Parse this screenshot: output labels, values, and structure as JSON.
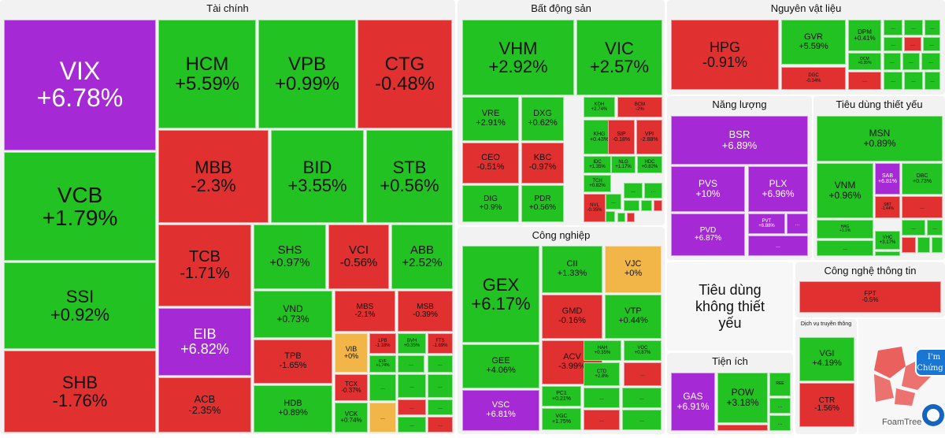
{
  "chart_data": {
    "type": "treemap",
    "sectors": [
      {
        "name": "Tài chính",
        "tiles": [
          {
            "s": "VIX",
            "c": "+6.78%"
          },
          {
            "s": "HCM",
            "c": "+5.59%"
          },
          {
            "s": "VPB",
            "c": "+0.99%"
          },
          {
            "s": "CTG",
            "c": "-0.48%"
          },
          {
            "s": "VCB",
            "c": "+1.79%"
          },
          {
            "s": "MBB",
            "c": "-2.3%"
          },
          {
            "s": "BID",
            "c": "+3.55%"
          },
          {
            "s": "STB",
            "c": "+0.56%"
          },
          {
            "s": "SSI",
            "c": "+0.92%"
          },
          {
            "s": "TCB",
            "c": "-1.71%"
          },
          {
            "s": "SHS",
            "c": "+0.97%"
          },
          {
            "s": "VCI",
            "c": "-0.56%"
          },
          {
            "s": "ABB",
            "c": "+2.52%"
          },
          {
            "s": "EIB",
            "c": "+6.82%"
          },
          {
            "s": "VND",
            "c": "+0.73%"
          },
          {
            "s": "MBS",
            "c": "-2.1%"
          },
          {
            "s": "MSB",
            "c": "-0.39%"
          },
          {
            "s": "SHB",
            "c": "-1.76%"
          },
          {
            "s": "TPB",
            "c": "-1.65%"
          },
          {
            "s": "VIB",
            "c": "+0%"
          },
          {
            "s": "LPB",
            "c": "-1.18%"
          },
          {
            "s": "BVH",
            "c": "+0.35%"
          },
          {
            "s": "FTS",
            "c": "-1.69%"
          },
          {
            "s": "EVF",
            "c": "+1.74%"
          },
          {
            "s": "TCX",
            "c": "-0.37%"
          },
          {
            "s": "ACB",
            "c": "-2.35%"
          },
          {
            "s": "HDB",
            "c": "+0.89%"
          },
          {
            "s": "VCK",
            "c": "+0.74%"
          }
        ]
      },
      {
        "name": "Bất động sản",
        "tiles": [
          {
            "s": "VHM",
            "c": "+2.92%"
          },
          {
            "s": "VIC",
            "c": "+2.57%"
          },
          {
            "s": "VRE",
            "c": "+2.91%"
          },
          {
            "s": "DXG",
            "c": "+0.62%"
          },
          {
            "s": "KDH",
            "c": "+2.74%"
          },
          {
            "s": "BCM",
            "c": "-2%"
          },
          {
            "s": "KHG",
            "c": "+0.43%"
          },
          {
            "s": "SIP",
            "c": "-0.18%"
          },
          {
            "s": "VPI",
            "c": "-2.88%"
          },
          {
            "s": "CEO",
            "c": "-0.51%"
          },
          {
            "s": "KBC",
            "c": "-0.97%"
          },
          {
            "s": "IDC",
            "c": "+1.35%"
          },
          {
            "s": "NLG",
            "c": "+1.17%"
          },
          {
            "s": "HDC",
            "c": "+0.82%"
          },
          {
            "s": "TCH",
            "c": "+0.82%"
          },
          {
            "s": "DIG",
            "c": "+0.9%"
          },
          {
            "s": "PDR",
            "c": "+0.56%"
          },
          {
            "s": "NVL",
            "c": "-0.35%"
          }
        ]
      },
      {
        "name": "Công nghiệp",
        "tiles": [
          {
            "s": "GEX",
            "c": "+6.17%"
          },
          {
            "s": "CII",
            "c": "+1.33%"
          },
          {
            "s": "VJC",
            "c": "+0%"
          },
          {
            "s": "GMD",
            "c": "-0.16%"
          },
          {
            "s": "VTP",
            "c": "+0.44%"
          },
          {
            "s": "GEE",
            "c": "+4.06%"
          },
          {
            "s": "ACV",
            "c": "-3.99%"
          },
          {
            "s": "HAH",
            "c": "+0.35%"
          },
          {
            "s": "VOC",
            "c": "+0.87%"
          },
          {
            "s": "CTD",
            "c": "+2.8%"
          },
          {
            "s": "VSC",
            "c": "+6.81%"
          },
          {
            "s": "PC1",
            "c": "+0.21%"
          },
          {
            "s": "VGC",
            "c": "+1.75%"
          }
        ]
      },
      {
        "name": "Nguyên vật liệu",
        "tiles": [
          {
            "s": "HPG",
            "c": "-0.91%"
          },
          {
            "s": "GVR",
            "c": "+5.59%"
          },
          {
            "s": "DPM",
            "c": "+0.41%"
          },
          {
            "s": "DGC",
            "c": "-0.34%"
          },
          {
            "s": "DCM",
            "c": "+0.35%"
          }
        ]
      },
      {
        "name": "Năng lượng",
        "tiles": [
          {
            "s": "BSR",
            "c": "+6.89%"
          },
          {
            "s": "PVS",
            "c": "+10%"
          },
          {
            "s": "PLX",
            "c": "+6.96%"
          },
          {
            "s": "PVD",
            "c": "+6.87%"
          },
          {
            "s": "PVT",
            "c": "+6.88%"
          }
        ]
      },
      {
        "name": "Tiêu dùng thiết yếu",
        "tiles": [
          {
            "s": "MSN",
            "c": "+0.89%"
          },
          {
            "s": "VNM",
            "c": "+0.96%"
          },
          {
            "s": "SAB",
            "c": "+6.81%"
          },
          {
            "s": "DBC",
            "c": "+0.73%"
          },
          {
            "s": "SBT",
            "c": "-1.44%"
          },
          {
            "s": "HAG",
            "c": "+1.1%"
          },
          {
            "s": "VHC",
            "c": "+3.17%"
          }
        ]
      },
      {
        "name": "Tiêu dùng không thiết yếu",
        "tiles": []
      },
      {
        "name": "Công nghệ thông tin",
        "tiles": [
          {
            "s": "FPT",
            "c": "-0.5%"
          }
        ]
      },
      {
        "name": "Tiện ích",
        "tiles": [
          {
            "s": "GAS",
            "c": "+6.91%"
          },
          {
            "s": "POW",
            "c": "+3.18%"
          },
          {
            "s": "REE",
            "c": ""
          }
        ]
      },
      {
        "name": "Dịch vụ truyền thông",
        "tiles": [
          {
            "s": "VGI",
            "c": "+4.19%"
          },
          {
            "s": "CTR",
            "c": "-1.56%"
          }
        ]
      }
    ],
    "color_scale": {
      "ceiling": "#a52ad6",
      "up": "#21c221",
      "reference": "#f2b648",
      "down": "#e13030"
    }
  },
  "more_label": "...",
  "watermark": {
    "brand": "FoamTree",
    "badge_line1": "I'm",
    "badge_line2": "Chứng S"
  }
}
